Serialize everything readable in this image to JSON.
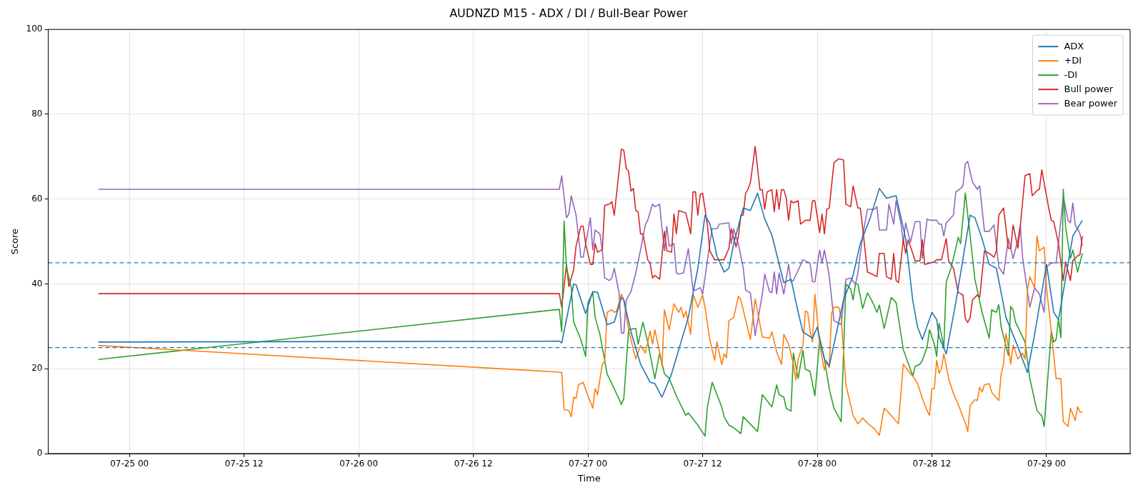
{
  "chart_data": {
    "type": "line",
    "title": "AUDNZD M15 - ADX / DI / Bull-Bear Power",
    "xlabel": "Time",
    "ylabel": "Score",
    "legend": "top right",
    "grid": true,
    "marker": "none",
    "xlim": [
      "--07-24T15:30",
      "--07-29T08:45"
    ],
    "xticks": [
      {
        "value": "--07-25T00:00",
        "label": "07-25 00"
      },
      {
        "value": "--07-25T12:00",
        "label": "07-25 12"
      },
      {
        "value": "--07-26T00:00",
        "label": "07-26 00"
      },
      {
        "value": "--07-26T12:00",
        "label": "07-26 12"
      },
      {
        "value": "--07-27T00:00",
        "label": "07-27 00"
      },
      {
        "value": "--07-27T12:00",
        "label": "07-27 12"
      },
      {
        "value": "--07-28T00:00",
        "label": "07-28 00"
      },
      {
        "value": "--07-28T12:00",
        "label": "07-28 12"
      },
      {
        "value": "--07-29T00:00",
        "label": "07-29 00"
      }
    ],
    "ylim": [
      0,
      100
    ],
    "yticks": [
      0,
      20,
      40,
      60,
      80,
      100
    ],
    "ref_lines": [
      {
        "axis": "y",
        "value": 45,
        "color": "#1f77b4",
        "line_style": "dashed"
      },
      {
        "axis": "y",
        "value": 25,
        "color": "#1f77b4",
        "line_style": "dashed"
      }
    ],
    "series": [
      {
        "name": "ADX",
        "color": "#1f77b4",
        "x": [
          "--07-24T20:45",
          "--07-26T21:00",
          "--07-26T21:15",
          "--07-26T22:30",
          "--07-26T22:45",
          "--07-26T23:45",
          "--07-27T00:30",
          "--07-27T01:00",
          "--07-27T01:15",
          "--07-27T02:00",
          "--07-27T02:45",
          "--07-27T03:30",
          "--07-27T03:45",
          "--07-27T04:30",
          "--07-27T05:30",
          "--07-27T06:30",
          "--07-27T07:00",
          "--07-27T07:45",
          "--07-27T08:45",
          "--07-27T10:30",
          "--07-27T11:30",
          "--07-27T12:15",
          "--07-27T12:45",
          "--07-27T13:30",
          "--07-27T14:15",
          "--07-27T14:45",
          "--07-27T15:15",
          "--07-27T16:15",
          "--07-27T17:00",
          "--07-27T17:45",
          "--07-27T18:30",
          "--07-27T19:15",
          "--07-27T20:30",
          "--07-27T21:15",
          "--07-27T22:00",
          "--07-27T22:30",
          "--07-27T23:30",
          "--07-28T00:00",
          "--07-28T00:45",
          "--07-28T01:15",
          "--07-28T02:45",
          "--07-28T03:45",
          "--07-28T04:30",
          "--07-28T05:30",
          "--07-28T06:30",
          "--07-28T07:15",
          "--07-28T08:15",
          "--07-28T09:15",
          "--07-28T10:00",
          "--07-28T10:30",
          "--07-28T11:00",
          "--07-28T12:00",
          "--07-28T12:30",
          "--07-28T12:45",
          "--07-28T13:30",
          "--07-28T14:30",
          "--07-28T16:00",
          "--07-28T16:30",
          "--07-28T17:15",
          "--07-28T18:00",
          "--07-28T18:45",
          "--07-28T19:45",
          "--07-28T21:00",
          "--07-28T22:00",
          "--07-28T22:45",
          "--07-29T00:00",
          "--07-29T00:45",
          "--07-29T01:15",
          "--07-29T02:00",
          "--07-29T02:45",
          "--07-29T03:45"
        ],
        "values": [
          26.3,
          26.5,
          26.1,
          40,
          39.8,
          33,
          38.2,
          38,
          36.2,
          30.4,
          31,
          36.8,
          36.2,
          28.7,
          21.1,
          16.8,
          16.5,
          13.3,
          18.8,
          32.1,
          43.7,
          56.2,
          54.2,
          46.6,
          42.8,
          43.7,
          49.5,
          57.9,
          57.3,
          61.4,
          55.3,
          51.5,
          40.3,
          41.1,
          33.3,
          28.7,
          27.2,
          29.8,
          22.3,
          20.6,
          36.2,
          42,
          49.5,
          55.3,
          62.5,
          60.2,
          60.8,
          50.7,
          36,
          29.8,
          26.9,
          33.3,
          31.6,
          27.5,
          23.5,
          35.6,
          56.2,
          55.6,
          50.7,
          44.6,
          43.7,
          32.1,
          25.2,
          19.1,
          28.1,
          44.6,
          33.3,
          31.6,
          41.4,
          51.3,
          55
        ]
      },
      {
        "name": "+DI",
        "color": "#ff7f0e",
        "x": [
          "--07-24T20:45",
          "--07-26T21:00",
          "--07-26T21:15",
          "--07-26T21:30",
          "--07-26T22:00",
          "--07-26T22:15",
          "--07-26T22:30",
          "--07-26T22:45",
          "--07-26T23:00",
          "--07-26T23:30",
          "--07-27T00:00",
          "--07-27T00:30",
          "--07-27T00:45",
          "--07-27T01:00",
          "--07-27T01:30",
          "--07-27T01:45",
          "--07-27T02:00",
          "--07-27T02:30",
          "--07-27T02:45",
          "--07-27T03:00",
          "--07-27T03:30",
          "--07-27T03:45",
          "--07-27T04:15",
          "--07-27T05:00",
          "--07-27T05:30",
          "--07-27T06:00",
          "--07-27T06:15",
          "--07-27T06:30",
          "--07-27T06:45",
          "--07-27T07:00",
          "--07-27T07:30",
          "--07-27T07:45",
          "--07-27T08:00",
          "--07-27T08:30",
          "--07-27T09:00",
          "--07-27T09:30",
          "--07-27T09:45",
          "--07-27T10:00",
          "--07-27T10:15",
          "--07-27T10:45",
          "--07-27T11:00",
          "--07-27T11:30",
          "--07-27T12:00",
          "--07-27T12:15",
          "--07-27T12:45",
          "--07-27T13:15",
          "--07-27T13:30",
          "--07-27T14:00",
          "--07-27T14:15",
          "--07-27T14:30",
          "--07-27T14:45",
          "--07-27T15:15",
          "--07-27T15:45",
          "--07-27T16:00",
          "--07-27T17:00",
          "--07-27T17:30",
          "--07-27T18:15",
          "--07-27T19:00",
          "--07-27T19:15",
          "--07-27T19:45",
          "--07-27T20:15",
          "--07-27T20:30",
          "--07-27T21:00",
          "--07-27T21:30",
          "--07-27T21:45",
          "--07-27T22:00",
          "--07-27T22:30",
          "--07-27T22:45",
          "--07-27T23:00",
          "--07-27T23:15",
          "--07-27T23:30",
          "--07-27T23:45",
          "--07-28T00:15",
          "--07-28T00:30",
          "--07-28T00:45",
          "--07-28T01:00",
          "--07-28T01:15",
          "--07-28T01:30",
          "--07-28T01:45",
          "--07-28T02:15",
          "--07-28T02:30",
          "--07-28T03:00",
          "--07-28T03:45",
          "--07-28T04:15",
          "--07-28T04:45",
          "--07-28T05:15",
          "--07-28T06:00",
          "--07-28T06:30",
          "--07-28T07:00",
          "--07-28T07:30",
          "--07-28T08:30",
          "--07-28T09:00",
          "--07-28T09:45",
          "--07-28T10:00",
          "--07-28T10:30",
          "--07-28T11:00",
          "--07-28T11:30",
          "--07-28T11:45",
          "--07-28T12:00",
          "--07-28T12:15",
          "--07-28T12:30",
          "--07-28T12:45",
          "--07-28T13:00",
          "--07-28T13:15",
          "--07-28T13:45",
          "--07-28T14:15",
          "--07-28T14:45",
          "--07-28T15:30",
          "--07-28T15:45",
          "--07-28T16:00",
          "--07-28T16:30",
          "--07-28T16:45",
          "--07-28T17:00",
          "--07-28T17:15",
          "--07-28T17:30",
          "--07-28T18:00",
          "--07-28T18:15",
          "--07-28T19:00",
          "--07-28T19:15",
          "--07-28T19:30",
          "--07-28T19:45",
          "--07-28T20:00",
          "--07-28T20:15",
          "--07-28T20:30",
          "--07-28T21:00",
          "--07-28T21:30",
          "--07-28T21:45",
          "--07-28T22:00",
          "--07-28T22:15",
          "--07-28T22:45",
          "--07-28T23:00",
          "--07-28T23:15",
          "--07-28T23:45",
          "--07-29T00:00",
          "--07-29T00:30",
          "--07-29T01:00",
          "--07-29T01:30",
          "--07-29T01:45",
          "--07-29T02:15",
          "--07-29T02:30",
          "--07-29T03:00",
          "--07-29T03:15",
          "--07-29T03:30",
          "--07-29T03:45"
        ],
        "values": [
          25.5,
          19.2,
          19.1,
          10.4,
          10.1,
          8.7,
          13.3,
          13,
          16.2,
          16.8,
          13.6,
          10.7,
          15.3,
          13.9,
          21.1,
          21.7,
          33.3,
          33.9,
          33.3,
          33.6,
          37.6,
          36.2,
          29.2,
          22.3,
          25.5,
          23.7,
          26.3,
          28.9,
          25.8,
          29.2,
          24,
          20.6,
          33.9,
          29.2,
          35.3,
          33.3,
          34.5,
          32.1,
          33.6,
          28.1,
          37.6,
          34.5,
          37.4,
          34.5,
          26.9,
          22,
          26.3,
          21,
          23.5,
          22.6,
          31.3,
          32.1,
          37.1,
          36.2,
          26.9,
          36.4,
          27.5,
          27.2,
          28.7,
          24,
          21,
          28.1,
          25.8,
          21.1,
          17.4,
          22.3,
          25.5,
          33.6,
          33.3,
          28.9,
          26.3,
          37.6,
          25.8,
          22.6,
          19.7,
          21.7,
          20.3,
          33.1,
          34.5,
          34.5,
          32.1,
          16.2,
          9,
          7,
          8.4,
          7.2,
          5.8,
          4.3,
          10.7,
          9.6,
          7,
          21.1,
          18.8,
          18.3,
          16.5,
          13,
          10.1,
          9,
          15.3,
          15.3,
          22,
          18.9,
          20,
          23.5,
          17.7,
          14.2,
          11.6,
          7.2,
          5.2,
          11.3,
          12.7,
          12.5,
          15.6,
          14.5,
          16.2,
          16.5,
          14.5,
          12.5,
          18.8,
          21.1,
          28.3,
          25.2,
          21.1,
          25.5,
          22.3,
          23.7,
          22.3,
          38.5,
          41.7,
          39.1,
          51.3,
          47.8,
          48.7,
          39.1,
          28.7,
          17.7,
          17.7,
          7.5,
          6.4,
          10.7,
          7.8,
          11,
          9.8,
          9.8
        ]
      },
      {
        "name": "-DI",
        "color": "#2ca02c",
        "x": [
          "--07-24T20:45",
          "--07-26T21:00",
          "--07-26T21:15",
          "--07-26T21:30",
          "--07-26T21:45",
          "--07-26T22:15",
          "--07-26T22:30",
          "--07-26T23:15",
          "--07-26T23:45",
          "--07-27T00:00",
          "--07-27T00:30",
          "--07-27T00:45",
          "--07-27T01:15",
          "--07-27T02:00",
          "--07-27T02:45",
          "--07-27T03:30",
          "--07-27T03:45",
          "--07-27T04:15",
          "--07-27T05:00",
          "--07-27T05:15",
          "--07-27T05:45",
          "--07-27T06:15",
          "--07-27T07:00",
          "--07-27T07:30",
          "--07-27T08:00",
          "--07-27T08:30",
          "--07-27T09:15",
          "--07-27T10:15",
          "--07-27T10:30",
          "--07-27T11:30",
          "--07-27T12:15",
          "--07-27T12:30",
          "--07-27T13:00",
          "--07-27T14:00",
          "--07-27T14:15",
          "--07-27T14:45",
          "--07-27T15:15",
          "--07-27T16:00",
          "--07-27T16:15",
          "--07-27T17:45",
          "--07-27T18:15",
          "--07-27T19:15",
          "--07-27T19:45",
          "--07-27T20:00",
          "--07-27T20:30",
          "--07-27T20:45",
          "--07-27T21:15",
          "--07-27T21:30",
          "--07-27T22:00",
          "--07-27T22:30",
          "--07-27T22:45",
          "--07-27T23:15",
          "--07-27T23:45",
          "--07-28T00:15",
          "--07-28T00:45",
          "--07-28T01:15",
          "--07-28T01:45",
          "--07-28T02:30",
          "--07-28T03:00",
          "--07-28T03:30",
          "--07-28T03:45",
          "--07-28T04:00",
          "--07-28T04:15",
          "--07-28T04:45",
          "--07-28T05:15",
          "--07-28T05:45",
          "--07-28T06:15",
          "--07-28T06:30",
          "--07-28T07:00",
          "--07-28T07:45",
          "--07-28T08:15",
          "--07-28T09:00",
          "--07-28T09:30",
          "--07-28T10:00",
          "--07-28T10:15",
          "--07-28T10:45",
          "--07-28T11:00",
          "--07-28T11:30",
          "--07-28T11:45",
          "--07-28T12:15",
          "--07-28T12:30",
          "--07-28T12:45",
          "--07-28T13:15",
          "--07-28T13:30",
          "--07-28T14:00",
          "--07-28T14:30",
          "--07-28T14:45",
          "--07-28T15:00",
          "--07-28T15:30",
          "--07-28T16:00",
          "--07-28T16:30",
          "--07-28T17:15",
          "--07-28T18:00",
          "--07-28T18:15",
          "--07-28T18:45",
          "--07-28T19:00",
          "--07-28T19:15",
          "--07-28T20:00",
          "--07-28T20:15",
          "--07-28T20:30",
          "--07-28T20:45",
          "--07-28T21:15",
          "--07-28T21:45",
          "--07-28T22:15",
          "--07-28T23:00",
          "--07-28T23:30",
          "--07-28T23:45",
          "--07-29T00:30",
          "--07-29T00:45",
          "--07-29T01:00",
          "--07-29T01:15",
          "--07-29T01:30",
          "--07-29T01:45",
          "--07-29T02:00",
          "--07-29T02:30",
          "--07-29T02:45",
          "--07-29T03:15",
          "--07-29T03:45"
        ],
        "values": [
          22.2,
          34,
          28.7,
          54.8,
          43.7,
          39.1,
          31,
          26.9,
          22.9,
          35.6,
          38,
          32.1,
          28.1,
          18.8,
          15.3,
          11.6,
          13,
          29.2,
          29.5,
          25.8,
          31,
          26.3,
          17.7,
          23.7,
          18.8,
          17.7,
          13.6,
          9,
          9.6,
          6.7,
          4.1,
          11,
          16.8,
          11,
          8.7,
          6.7,
          6.1,
          4.7,
          8.7,
          5.2,
          13.9,
          11,
          16.2,
          13.9,
          13.3,
          10.7,
          10,
          23.7,
          17.7,
          24.3,
          19.9,
          19.4,
          13.6,
          26.9,
          22.3,
          15.3,
          10.7,
          7.5,
          40,
          38.8,
          36.2,
          40,
          40,
          34.2,
          37.9,
          35.9,
          33.3,
          35,
          29.5,
          36.8,
          35.6,
          24.6,
          21.4,
          18.3,
          20.6,
          21.1,
          22,
          25.2,
          29.2,
          25.8,
          22.9,
          30.7,
          25.2,
          40.5,
          43.7,
          48.4,
          51,
          49.5,
          61.4,
          51.3,
          41.1,
          33.3,
          27.2,
          33.9,
          33.3,
          35.1,
          29.8,
          23.2,
          34.7,
          33.9,
          31,
          28.7,
          26.3,
          17.7,
          10.1,
          8.9,
          6.4,
          29,
          26.3,
          26.9,
          31.6,
          27.3,
          62.3,
          53.3,
          46,
          48,
          42.8,
          47.2
        ]
      },
      {
        "name": "Bull power",
        "color": "#d62728",
        "x": [
          "--07-24T20:45",
          "--07-26T21:00",
          "--07-26T21:15",
          "--07-26T21:45",
          "--07-26T22:00",
          "--07-26T22:30",
          "--07-26T22:45",
          "--07-26T23:15",
          "--07-26T23:30",
          "--07-26T23:45",
          "--07-27T00:15",
          "--07-27T00:30",
          "--07-27T00:45",
          "--07-27T01:00",
          "--07-27T01:30",
          "--07-27T01:45",
          "--07-27T02:15",
          "--07-27T02:30",
          "--07-27T02:45",
          "--07-27T03:30",
          "--07-27T03:45",
          "--07-27T04:00",
          "--07-27T04:15",
          "--07-27T04:30",
          "--07-27T04:45",
          "--07-27T05:00",
          "--07-27T05:15",
          "--07-27T05:30",
          "--07-27T05:45",
          "--07-27T06:15",
          "--07-27T06:30",
          "--07-27T06:45",
          "--07-27T07:00",
          "--07-27T07:30",
          "--07-27T08:00",
          "--07-27T08:15",
          "--07-27T08:45",
          "--07-27T09:00",
          "--07-27T09:15",
          "--07-27T09:30",
          "--07-27T10:15",
          "--07-27T10:45",
          "--07-27T11:00",
          "--07-27T11:15",
          "--07-27T11:30",
          "--07-27T11:45",
          "--07-27T12:00",
          "--07-27T12:30",
          "--07-27T12:45",
          "--07-27T13:15",
          "--07-27T14:15",
          "--07-27T14:45",
          "--07-27T15:00",
          "--07-27T15:30",
          "--07-27T15:45",
          "--07-27T16:00",
          "--07-27T16:15",
          "--07-27T16:30",
          "--07-27T16:45",
          "--07-27T17:00",
          "--07-27T17:30",
          "--07-27T18:00",
          "--07-27T18:15",
          "--07-27T18:30",
          "--07-27T18:45",
          "--07-27T19:15",
          "--07-27T19:30",
          "--07-27T19:45",
          "--07-27T20:00",
          "--07-27T20:15",
          "--07-27T20:30",
          "--07-27T20:45",
          "--07-27T21:00",
          "--07-27T21:15",
          "--07-27T21:30",
          "--07-27T22:00",
          "--07-27T22:15",
          "--07-27T22:45",
          "--07-27T23:15",
          "--07-27T23:30",
          "--07-27T23:45",
          "--07-28T00:15",
          "--07-28T00:30",
          "--07-28T00:45",
          "--07-28T01:00",
          "--07-28T01:15",
          "--07-28T01:45",
          "--07-28T02:15",
          "--07-28T02:45",
          "--07-28T03:00",
          "--07-28T03:30",
          "--07-28T03:45",
          "--07-28T04:15",
          "--07-28T04:30",
          "--07-28T04:45",
          "--07-28T05:15",
          "--07-28T05:45",
          "--07-28T06:15",
          "--07-28T06:30",
          "--07-28T07:00",
          "--07-28T07:15",
          "--07-28T07:45",
          "--07-28T08:00",
          "--07-28T08:15",
          "--07-28T08:30",
          "--07-28T09:00",
          "--07-28T09:15",
          "--07-28T09:30",
          "--07-28T10:00",
          "--07-28T10:15",
          "--07-28T10:45",
          "--07-28T11:00",
          "--07-28T11:15",
          "--07-28T11:45",
          "--07-28T12:15",
          "--07-28T12:30",
          "--07-28T13:00",
          "--07-28T13:30",
          "--07-28T13:45",
          "--07-28T14:15",
          "--07-28T14:45",
          "--07-28T15:15",
          "--07-28T15:30",
          "--07-28T15:45",
          "--07-28T16:00",
          "--07-28T16:15",
          "--07-28T16:45",
          "--07-28T17:00",
          "--07-28T17:30",
          "--07-28T18:00",
          "--07-28T18:30",
          "--07-28T18:45",
          "--07-28T19:00",
          "--07-28T19:30",
          "--07-28T20:00",
          "--07-28T20:15",
          "--07-28T20:30",
          "--07-28T21:00",
          "--07-28T21:15",
          "--07-28T21:45",
          "--07-28T22:15",
          "--07-28T22:30",
          "--07-28T23:00",
          "--07-28T23:15",
          "--07-28T23:30",
          "--07-29T00:15",
          "--07-29T00:30",
          "--07-29T00:45",
          "--07-29T01:15",
          "--07-29T01:45",
          "--07-29T02:00",
          "--07-29T02:30",
          "--07-29T02:45",
          "--07-29T03:15",
          "--07-29T03:30",
          "--07-29T03:45"
        ],
        "values": [
          37.7,
          37.7,
          34.5,
          44.6,
          39.4,
          43.4,
          48.9,
          53.6,
          53.6,
          49.5,
          44.6,
          44.6,
          49.5,
          47.5,
          48.1,
          58.5,
          58.8,
          59.4,
          56.2,
          71.8,
          71.5,
          67.2,
          66.6,
          61.9,
          62.5,
          57.3,
          57,
          51.8,
          51.8,
          45.7,
          44.9,
          41.4,
          42,
          41.1,
          52.4,
          47.8,
          47.5,
          56.5,
          51.8,
          57.3,
          56.7,
          51.8,
          61.7,
          61.7,
          56.2,
          61.1,
          61.4,
          53.9,
          47.8,
          45.7,
          45.7,
          48.4,
          53,
          48.7,
          51.3,
          56.2,
          56.2,
          61.4,
          62.3,
          63.9,
          72.4,
          62.2,
          62.2,
          57.6,
          61.7,
          62.2,
          57,
          62.2,
          57.6,
          62.2,
          62.2,
          60.2,
          55,
          59.6,
          59.1,
          59.6,
          54.1,
          55,
          55,
          59.6,
          59.6,
          52.1,
          56.5,
          51.8,
          57.6,
          57.9,
          68.6,
          69.5,
          69.2,
          58.8,
          58.2,
          63.1,
          57.9,
          57.9,
          53.3,
          42.8,
          42.3,
          41.7,
          47.2,
          47.2,
          41.7,
          41.1,
          47.2,
          40.8,
          40.3,
          50.4,
          47.2,
          50.4,
          47.2,
          45.4,
          45.4,
          50.4,
          44.6,
          44.9,
          45.2,
          45.7,
          45.7,
          50.7,
          45.4,
          43.7,
          38,
          37.4,
          31.8,
          30.9,
          32.1,
          36.2,
          37.4,
          36.8,
          47.8,
          47.2,
          46.3,
          47.8,
          56.2,
          57.9,
          48.4,
          48.4,
          53.9,
          48.4,
          53.6,
          65.5,
          66,
          60.8,
          62,
          62.3,
          66.9,
          57.6,
          55,
          54.7,
          49.5,
          40.8,
          45.2,
          40.8,
          45.5,
          46.6,
          46.9,
          51.3
        ]
      },
      {
        "name": "Bear power",
        "color": "#9467bd",
        "x": [
          "--07-24T20:45",
          "--07-26T21:00",
          "--07-26T21:15",
          "--07-26T21:45",
          "--07-26T22:00",
          "--07-26T22:15",
          "--07-26T22:45",
          "--07-26T23:15",
          "--07-26T23:30",
          "--07-27T00:15",
          "--07-27T00:30",
          "--07-27T00:45",
          "--07-27T01:15",
          "--07-27T01:30",
          "--07-27T01:45",
          "--07-27T02:15",
          "--07-27T02:30",
          "--07-27T02:45",
          "--07-27T03:15",
          "--07-27T03:30",
          "--07-27T03:45",
          "--07-27T04:00",
          "--07-27T04:30",
          "--07-27T05:00",
          "--07-27T05:30",
          "--07-27T06:00",
          "--07-27T06:15",
          "--07-27T06:45",
          "--07-27T07:00",
          "--07-27T07:30",
          "--07-27T07:45",
          "--07-27T08:00",
          "--07-27T08:15",
          "--07-27T08:30",
          "--07-27T09:00",
          "--07-27T09:15",
          "--07-27T09:30",
          "--07-27T10:00",
          "--07-27T10:30",
          "--07-27T11:00",
          "--07-27T11:15",
          "--07-27T11:45",
          "--07-27T12:00",
          "--07-27T12:45",
          "--07-27T13:00",
          "--07-27T13:30",
          "--07-27T13:45",
          "--07-27T14:45",
          "--07-27T15:00",
          "--07-27T15:15",
          "--07-27T15:45",
          "--07-27T16:15",
          "--07-27T16:30",
          "--07-27T17:00",
          "--07-27T17:15",
          "--07-27T17:30",
          "--07-27T18:15",
          "--07-27T18:30",
          "--07-27T19:00",
          "--07-27T19:15",
          "--07-27T19:30",
          "--07-27T19:45",
          "--07-27T20:00",
          "--07-27T20:30",
          "--07-27T21:00",
          "--07-27T21:15",
          "--07-27T21:30",
          "--07-27T22:30",
          "--07-27T23:15",
          "--07-27T23:30",
          "--07-27T23:45",
          "--07-28T00:15",
          "--07-28T00:30",
          "--07-28T00:45",
          "--07-28T01:15",
          "--07-28T01:45",
          "--07-28T02:30",
          "--07-28T03:00",
          "--07-28T03:30",
          "--07-28T04:00",
          "--07-28T04:15",
          "--07-28T04:45",
          "--07-28T05:15",
          "--07-28T06:00",
          "--07-28T06:15",
          "--07-28T06:30",
          "--07-28T07:15",
          "--07-28T07:30",
          "--07-28T08:00",
          "--07-28T08:15",
          "--07-28T08:45",
          "--07-28T09:00",
          "--07-28T09:15",
          "--07-28T09:45",
          "--07-28T10:15",
          "--07-28T10:45",
          "--07-28T11:00",
          "--07-28T11:30",
          "--07-28T11:45",
          "--07-28T12:30",
          "--07-28T12:45",
          "--07-28T13:00",
          "--07-28T13:15",
          "--07-28T13:30",
          "--07-28T14:15",
          "--07-28T14:30",
          "--07-28T15:00",
          "--07-28T15:15",
          "--07-28T15:30",
          "--07-28T15:45",
          "--07-28T16:15",
          "--07-28T16:45",
          "--07-28T17:00",
          "--07-28T17:30",
          "--07-28T18:00",
          "--07-28T18:30",
          "--07-28T19:00",
          "--07-28T19:30",
          "--07-28T20:00",
          "--07-28T20:15",
          "--07-28T20:30",
          "--07-28T21:00",
          "--07-28T21:15",
          "--07-28T21:30",
          "--07-28T22:15",
          "--07-28T22:45",
          "--07-28T23:15",
          "--07-28T23:45",
          "--07-29T00:00",
          "--07-29T00:30",
          "--07-29T01:00",
          "--07-29T01:15",
          "--07-29T01:30",
          "--07-29T01:45",
          "--07-29T02:15",
          "--07-29T02:30",
          "--07-29T02:45",
          "--07-29T03:00",
          "--07-29T03:15",
          "--07-29T03:30",
          "--07-29T03:45"
        ],
        "values": [
          62.3,
          62.3,
          65.5,
          55.6,
          56.5,
          60.8,
          56.2,
          46.3,
          46.3,
          55.6,
          48,
          52.7,
          51.8,
          47.8,
          41.4,
          40.8,
          41.4,
          43.7,
          37.9,
          28.4,
          28.4,
          36.2,
          38.2,
          42.6,
          48,
          53.9,
          55,
          58.8,
          58.2,
          58.8,
          53,
          47.8,
          53.6,
          48.9,
          49.5,
          42.6,
          42.3,
          42.6,
          48.3,
          38.5,
          38.5,
          39.1,
          37.6,
          49.5,
          53,
          53,
          54.1,
          54.4,
          49.5,
          53,
          49.3,
          43.7,
          38.5,
          37.9,
          33,
          27.8,
          37.6,
          42.3,
          38.2,
          37.9,
          42.8,
          37.6,
          42.6,
          37.6,
          44.6,
          40.5,
          40.8,
          45.7,
          44.9,
          40.5,
          40.5,
          48,
          44.9,
          48,
          42,
          31.3,
          30.4,
          41.1,
          41.4,
          39.9,
          42.6,
          51.3,
          57.6,
          57.6,
          58.2,
          52.7,
          52.7,
          58.8,
          54.1,
          59.6,
          54.4,
          49.8,
          54.4,
          49.8,
          54.7,
          54.7,
          46,
          55.3,
          55,
          55,
          54.1,
          54.1,
          51.3,
          54.4,
          56.2,
          61.7,
          62.5,
          63.1,
          68.3,
          68.9,
          64,
          62.3,
          63.1,
          52.4,
          52.4,
          53.9,
          44,
          42.3,
          50.7,
          48.4,
          46,
          50.4,
          53.9,
          46,
          34.5,
          39.1,
          37.6,
          33.3,
          44,
          44.9,
          45,
          49.8,
          55,
          60.5,
          55,
          54.4,
          59.1,
          53.9,
          53,
          51.8,
          49
        ]
      }
    ]
  }
}
